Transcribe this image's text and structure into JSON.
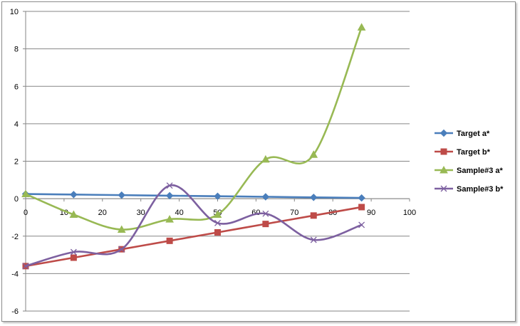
{
  "chart_data": {
    "type": "line",
    "title": "",
    "xlabel": "",
    "ylabel": "",
    "xlim": [
      0,
      100
    ],
    "ylim": [
      -6,
      10
    ],
    "x_ticks": [
      0,
      10,
      20,
      30,
      40,
      50,
      60,
      70,
      80,
      90,
      100
    ],
    "y_ticks": [
      -6,
      -4,
      -2,
      0,
      2,
      4,
      6,
      8,
      10
    ],
    "grid": "horizontal",
    "legend_position": "right",
    "smoothed": true,
    "series": [
      {
        "name": "Target a*",
        "color": "#4a7ebb",
        "marker": "diamond",
        "x": [
          0,
          12.5,
          25,
          37.5,
          50,
          62.5,
          75,
          87.5
        ],
        "y": [
          0.25,
          0.22,
          0.19,
          0.16,
          0.13,
          0.1,
          0.07,
          0.04
        ]
      },
      {
        "name": "Target b*",
        "color": "#be4b48",
        "marker": "square",
        "x": [
          0,
          12.5,
          25,
          37.5,
          50,
          62.5,
          75,
          87.5
        ],
        "y": [
          -3.6,
          -3.15,
          -2.7,
          -2.25,
          -1.8,
          -1.35,
          -0.9,
          -0.45
        ]
      },
      {
        "name": "Sample#3 a*",
        "color": "#98b954",
        "marker": "triangle",
        "x": [
          0,
          12.5,
          25,
          37.5,
          50,
          62.5,
          75,
          87.5
        ],
        "y": [
          0.25,
          -0.85,
          -1.65,
          -1.1,
          -0.85,
          2.1,
          2.35,
          9.15
        ]
      },
      {
        "name": "Sample#3 b*",
        "color": "#7d60a0",
        "marker": "x",
        "x": [
          0,
          12.5,
          25,
          37.5,
          50,
          62.5,
          75,
          87.5
        ],
        "y": [
          -3.6,
          -2.85,
          -2.7,
          0.7,
          -1.3,
          -0.8,
          -2.2,
          -1.4
        ]
      }
    ]
  }
}
